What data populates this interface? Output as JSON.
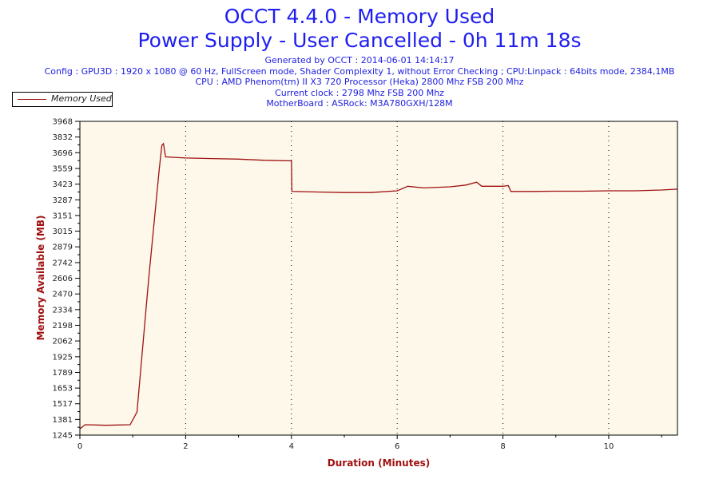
{
  "chart_data": {
    "type": "line",
    "title": "OCCT 4.4.0 - Memory Used",
    "subtitle": "Power Supply - User Cancelled - 0h 11m 18s",
    "info_lines": [
      "Generated by OCCT : 2014-06-01 14:14:17",
      "Config : GPU3D : 1920 x 1080 @ 60 Hz, FullScreen mode, Shader Complexity 1, without Error Checking ; CPU:Linpack : 64bits mode, 2384,1MB",
      "CPU : AMD Phenom(tm) II X3 720 Processor (Heka) 2800 Mhz FSB 200 Mhz",
      "Current clock : 2798 Mhz FSB 200 Mhz",
      "MotherBoard : ASRock: M3A780GXH/128M"
    ],
    "xlabel": "Duration (Minutes)",
    "ylabel": "Memory Available (MB)",
    "xlim": [
      0,
      11.3
    ],
    "ylim": [
      1245,
      3968
    ],
    "xticks": [
      "0",
      "2",
      "4",
      "6",
      "8",
      "10"
    ],
    "yticks": [
      "1245",
      "1381",
      "1517",
      "1653",
      "1789",
      "1925",
      "2062",
      "2198",
      "2334",
      "2470",
      "2606",
      "2742",
      "2879",
      "3015",
      "3151",
      "3287",
      "3423",
      "3559",
      "3696",
      "3832",
      "3968"
    ],
    "grid": "vertical dotted",
    "legend_position": "top-left",
    "colors": {
      "line": "#a01010",
      "plot_bg": "#fdf8ea",
      "title": "#1e1ef0",
      "axis_label": "#a01010"
    },
    "series": [
      {
        "name": "Memory Used",
        "x": [
          0,
          0.1,
          0.5,
          0.95,
          1.08,
          1.3,
          1.5,
          1.55,
          1.58,
          1.62,
          2.0,
          2.5,
          3.0,
          3.5,
          4.0,
          4.01,
          4.5,
          5.0,
          5.5,
          6.0,
          6.2,
          6.5,
          7.0,
          7.3,
          7.5,
          7.6,
          8.0,
          8.1,
          8.15,
          8.5,
          9.0,
          9.5,
          10.0,
          10.5,
          11.0,
          11.3
        ],
        "values": [
          1300,
          1335,
          1330,
          1335,
          1445,
          2600,
          3550,
          3760,
          3775,
          3660,
          3650,
          3645,
          3640,
          3630,
          3625,
          3360,
          3355,
          3350,
          3350,
          3365,
          3405,
          3390,
          3400,
          3415,
          3440,
          3405,
          3405,
          3410,
          3360,
          3360,
          3362,
          3362,
          3365,
          3365,
          3372,
          3380
        ]
      }
    ]
  }
}
